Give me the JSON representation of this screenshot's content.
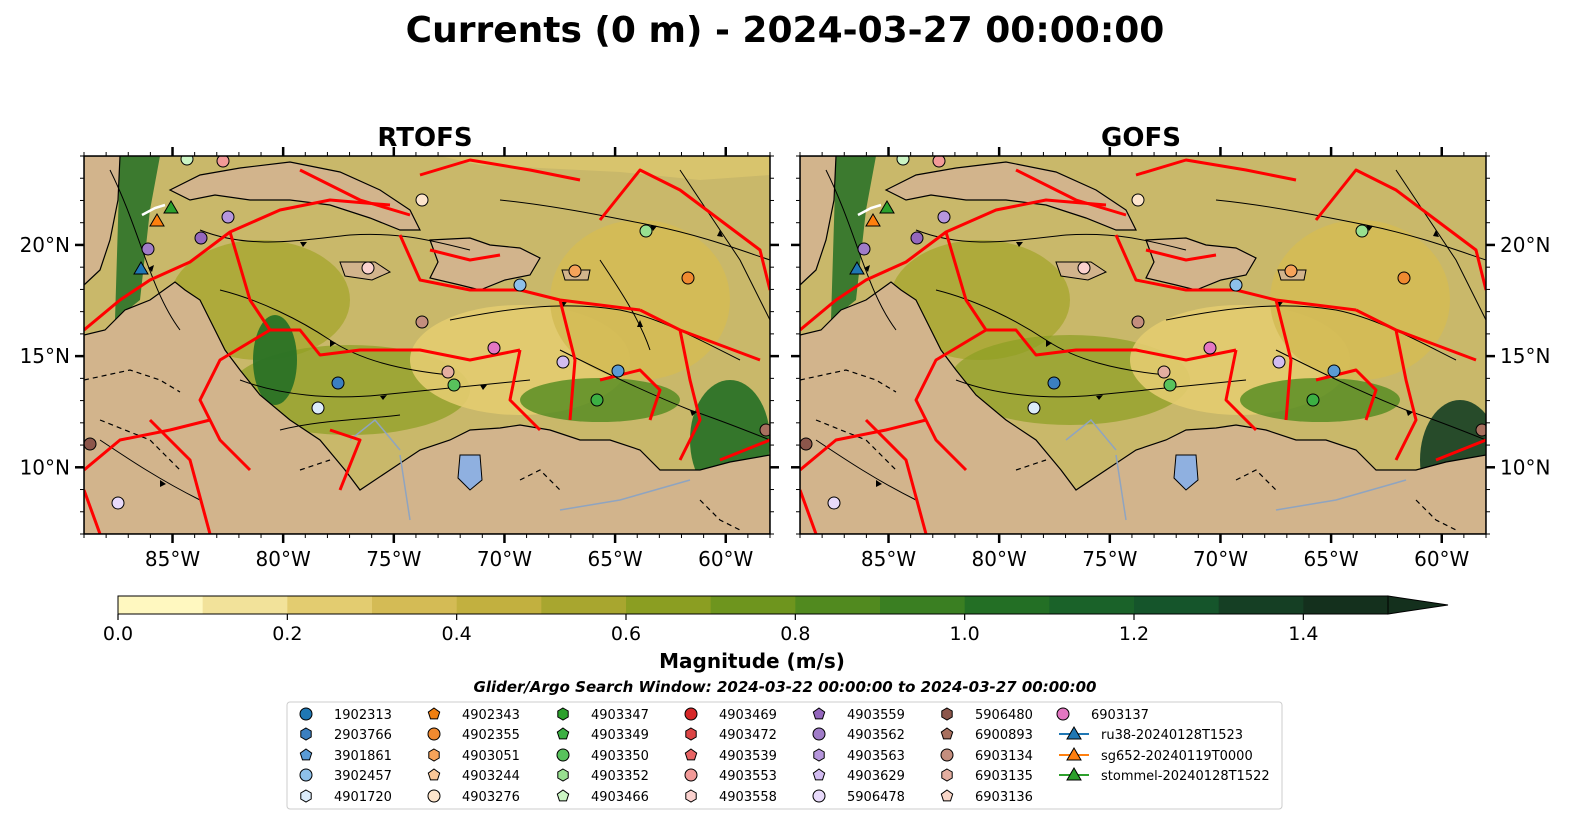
{
  "title": "Currents (0 m) - 2024-03-27 00:00:00",
  "panels": [
    {
      "name": "RTOFS"
    },
    {
      "name": "GOFS"
    }
  ],
  "map": {
    "lon_range": [
      -89,
      -58
    ],
    "lat_range": [
      7,
      24
    ],
    "lon_ticks": [
      "85°W",
      "80°W",
      "75°W",
      "70°W",
      "65°W",
      "60°W"
    ],
    "lat_ticks": [
      "10°N",
      "15°N",
      "20°N"
    ],
    "land_color": "#d2b48c",
    "lake_color": "#8fb0e0",
    "eez_color": "#ff0000"
  },
  "colorbar": {
    "label": "Magnitude (m/s)",
    "ticks": [
      "0.0",
      "0.2",
      "0.4",
      "0.6",
      "0.8",
      "1.0",
      "1.2",
      "1.4"
    ],
    "min": 0.0,
    "max": 1.5,
    "step": 0.1,
    "extend": "max",
    "colors": [
      "#fff8c0",
      "#f2e29a",
      "#e3cc70",
      "#d4bb55",
      "#c2b03f",
      "#a8a62f",
      "#8b9e22",
      "#6e951e",
      "#518a1f",
      "#3a7f22",
      "#236f25",
      "#1a6229",
      "#15552b",
      "#153f24",
      "#14301d"
    ]
  },
  "subtitle": "Glider/Argo Search Window: 2024-03-22 00:00:00 to 2024-03-27 00:00:00",
  "legend": {
    "columns": [
      [
        {
          "label": "1902313",
          "marker": "circle",
          "color": "#1f77b4"
        },
        {
          "label": "2903766",
          "marker": "hexagon",
          "color": "#3b7fc0"
        },
        {
          "label": "3901861",
          "marker": "pentagon",
          "color": "#5a9bd5"
        },
        {
          "label": "3902457",
          "marker": "circle",
          "color": "#8ec0ea"
        },
        {
          "label": "4901720",
          "marker": "hexagon",
          "color": "#dcecfa"
        }
      ],
      [
        {
          "label": "4902343",
          "marker": "pentagon",
          "color": "#f07f10"
        },
        {
          "label": "4902355",
          "marker": "circle",
          "color": "#f08a30"
        },
        {
          "label": "4903051",
          "marker": "hexagon",
          "color": "#f6a35a"
        },
        {
          "label": "4903244",
          "marker": "pentagon",
          "color": "#fbc898"
        },
        {
          "label": "4903276",
          "marker": "circle",
          "color": "#fde5cc"
        }
      ],
      [
        {
          "label": "4903347",
          "marker": "hexagon",
          "color": "#2ca02c"
        },
        {
          "label": "4903349",
          "marker": "pentagon",
          "color": "#3cb043"
        },
        {
          "label": "4903350",
          "marker": "circle",
          "color": "#58c25c"
        },
        {
          "label": "4903352",
          "marker": "hexagon",
          "color": "#98e090"
        },
        {
          "label": "4903466",
          "marker": "pentagon",
          "color": "#ccf5c4"
        }
      ],
      [
        {
          "label": "4903469",
          "marker": "circle",
          "color": "#d62728"
        },
        {
          "label": "4903472",
          "marker": "hexagon",
          "color": "#dc4545"
        },
        {
          "label": "4903539",
          "marker": "pentagon",
          "color": "#e86464"
        },
        {
          "label": "4903553",
          "marker": "circle",
          "color": "#f29a98"
        },
        {
          "label": "4903558",
          "marker": "hexagon",
          "color": "#fbd2cf"
        }
      ],
      [
        {
          "label": "4903559",
          "marker": "pentagon",
          "color": "#9467bd"
        },
        {
          "label": "4903562",
          "marker": "circle",
          "color": "#a07cc8"
        },
        {
          "label": "4903563",
          "marker": "hexagon",
          "color": "#b696dc"
        },
        {
          "label": "4903629",
          "marker": "pentagon",
          "color": "#d2bcf0"
        },
        {
          "label": "5906478",
          "marker": "circle",
          "color": "#e8dafa"
        }
      ],
      [
        {
          "label": "5906480",
          "marker": "hexagon",
          "color": "#8c564b"
        },
        {
          "label": "6900893",
          "marker": "pentagon",
          "color": "#a8705f"
        },
        {
          "label": "6903134",
          "marker": "circle",
          "color": "#c48e7e"
        },
        {
          "label": "6903135",
          "marker": "hexagon",
          "color": "#e4aea0"
        },
        {
          "label": "6903136",
          "marker": "pentagon",
          "color": "#f8d6c8"
        }
      ],
      [
        {
          "label": "6903137",
          "marker": "circle",
          "color": "#e377c2"
        },
        {
          "label": "ru38-20240128T1523",
          "marker": "triangle-line",
          "color": "#1f77b4"
        },
        {
          "label": "sg652-20240119T0000",
          "marker": "triangle-line",
          "color": "#ff7f0e"
        },
        {
          "label": "stommel-20240128T1522",
          "marker": "triangle-line",
          "color": "#2ca02c"
        }
      ]
    ]
  }
}
